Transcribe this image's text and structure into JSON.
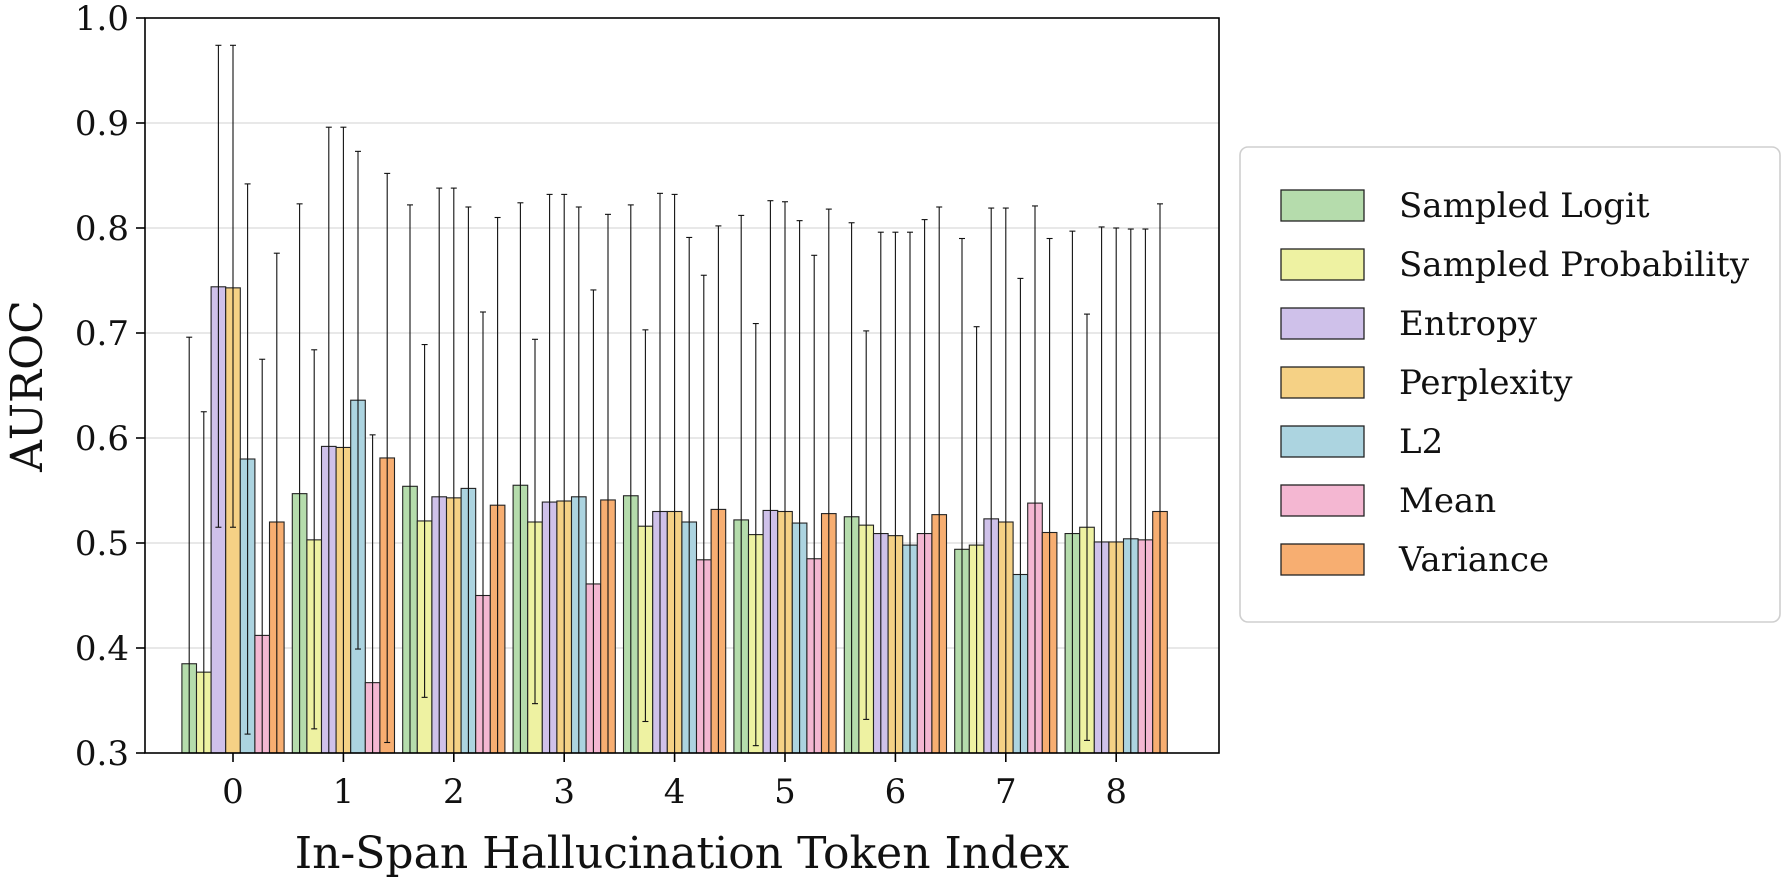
{
  "chart_data": {
    "type": "bar",
    "xlabel": "In-Span Hallucination Token Index",
    "ylabel": "AUROC",
    "ylim": [
      0.3,
      1.0
    ],
    "yticks": [
      "0.3",
      "0.4",
      "0.5",
      "0.6",
      "0.7",
      "0.8",
      "0.9",
      "1.0"
    ],
    "categories": [
      "0",
      "1",
      "2",
      "3",
      "4",
      "5",
      "6",
      "7",
      "8"
    ],
    "grid": "horizontal",
    "legend_position": "right",
    "error_bars": true,
    "series": [
      {
        "name": "Sampled Logit",
        "color": "#b5dcac",
        "values": [
          0.385,
          0.547,
          0.554,
          0.555,
          0.545,
          0.522,
          0.525,
          0.494,
          0.509
        ],
        "upper": [
          0.696,
          0.823,
          0.822,
          0.824,
          0.822,
          0.812,
          0.805,
          0.79,
          0.797
        ],
        "lower": [
          0.3,
          0.3,
          0.3,
          0.3,
          0.3,
          0.3,
          0.3,
          0.3,
          0.3
        ]
      },
      {
        "name": "Sampled Probability",
        "color": "#eef2a2",
        "values": [
          0.377,
          0.503,
          0.521,
          0.52,
          0.516,
          0.508,
          0.517,
          0.498,
          0.515
        ],
        "upper": [
          0.625,
          0.684,
          0.689,
          0.694,
          0.703,
          0.709,
          0.702,
          0.706,
          0.718
        ],
        "lower": [
          0.3,
          0.323,
          0.353,
          0.347,
          0.33,
          0.307,
          0.332,
          0.3,
          0.312
        ]
      },
      {
        "name": "Entropy",
        "color": "#cfc1ea",
        "values": [
          0.744,
          0.592,
          0.544,
          0.539,
          0.53,
          0.531,
          0.509,
          0.523,
          0.501
        ],
        "upper": [
          0.974,
          0.896,
          0.838,
          0.832,
          0.833,
          0.826,
          0.796,
          0.819,
          0.801
        ],
        "lower": [
          0.515,
          0.3,
          0.3,
          0.3,
          0.3,
          0.3,
          0.3,
          0.3,
          0.3
        ]
      },
      {
        "name": "Perplexity",
        "color": "#f5d185",
        "values": [
          0.743,
          0.591,
          0.543,
          0.54,
          0.53,
          0.53,
          0.507,
          0.52,
          0.501
        ],
        "upper": [
          0.974,
          0.896,
          0.838,
          0.832,
          0.832,
          0.825,
          0.796,
          0.819,
          0.8
        ],
        "lower": [
          0.515,
          0.3,
          0.3,
          0.3,
          0.3,
          0.3,
          0.3,
          0.3,
          0.3
        ]
      },
      {
        "name": "L2",
        "color": "#acd4e0",
        "values": [
          0.58,
          0.636,
          0.552,
          0.544,
          0.52,
          0.519,
          0.498,
          0.47,
          0.504
        ],
        "upper": [
          0.842,
          0.873,
          0.82,
          0.82,
          0.791,
          0.807,
          0.796,
          0.752,
          0.799
        ],
        "lower": [
          0.318,
          0.399,
          0.3,
          0.3,
          0.3,
          0.3,
          0.3,
          0.3,
          0.3
        ]
      },
      {
        "name": "Mean",
        "color": "#f4b7d2",
        "values": [
          0.412,
          0.367,
          0.45,
          0.461,
          0.484,
          0.485,
          0.509,
          0.538,
          0.503
        ],
        "upper": [
          0.675,
          0.603,
          0.72,
          0.741,
          0.755,
          0.774,
          0.808,
          0.821,
          0.799
        ],
        "lower": [
          0.3,
          0.3,
          0.3,
          0.3,
          0.3,
          0.3,
          0.3,
          0.3,
          0.3
        ]
      },
      {
        "name": "Variance",
        "color": "#f7ae71",
        "values": [
          0.52,
          0.581,
          0.536,
          0.541,
          0.532,
          0.528,
          0.527,
          0.51,
          0.53
        ],
        "upper": [
          0.776,
          0.852,
          0.81,
          0.813,
          0.802,
          0.818,
          0.82,
          0.79,
          0.823
        ],
        "lower": [
          0.3,
          0.31,
          0.3,
          0.3,
          0.3,
          0.3,
          0.3,
          0.3,
          0.3
        ]
      }
    ]
  }
}
